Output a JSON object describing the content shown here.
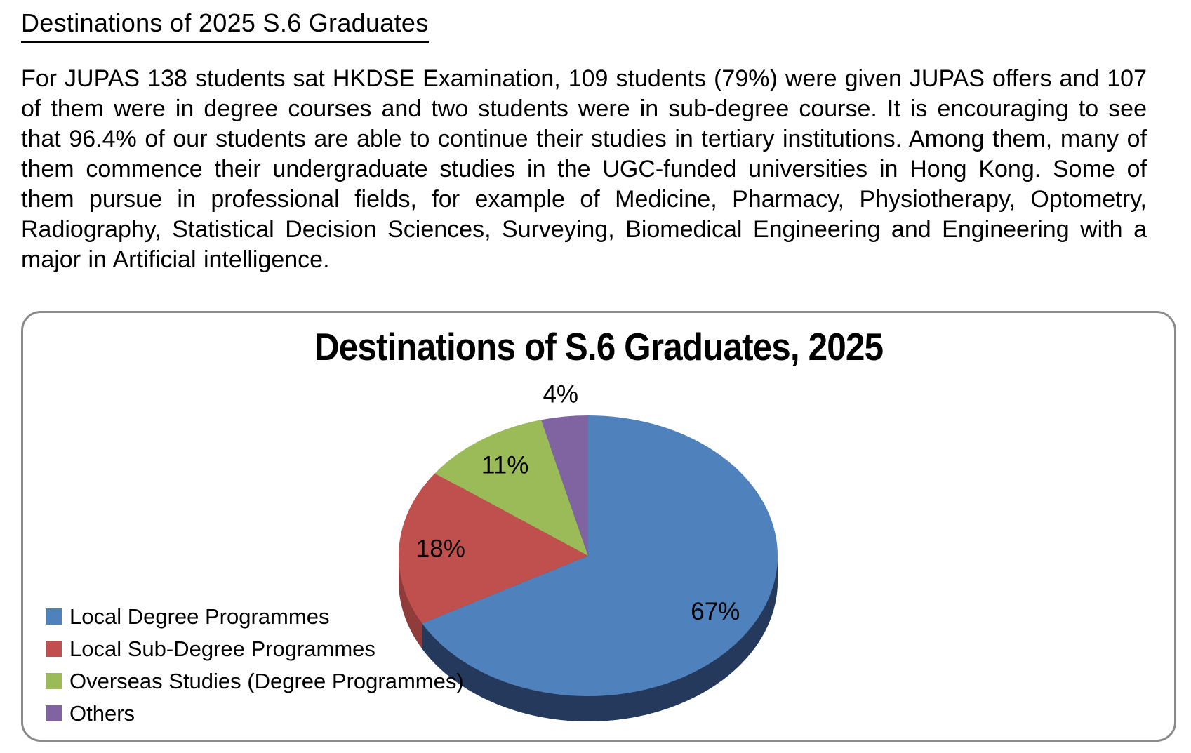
{
  "page": {
    "heading": "Destinations of 2025 S.6 Graduates",
    "paragraph": "For JUPAS 138 students sat HKDSE Examination, 109 students (79%) were given JUPAS offers and 107 of them were in degree courses and two students were in sub-degree course. It is encouraging to see that 96.4% of our students are able to continue their studies in tertiary institutions. Among them, many of them commence their undergraduate studies in the UGC-funded universities in Hong Kong. Some of them pursue in professional fields, for example of Medicine, Pharmacy, Physiotherapy, Optometry, Radiography, Statistical Decision Sciences, Surveying, Biomedical Engineering and Engineering with a major in Artificial intelligence."
  },
  "chart_data": {
    "type": "pie",
    "style": "3d",
    "title": "Destinations of S.6 Graduates, 2025",
    "start_angle_deg": 0,
    "direction": "clockwise",
    "legend_position": "bottom-left",
    "slices": [
      {
        "label": "Local Degree Programmes",
        "value": 67,
        "pct_label": "67%",
        "color": "#4F81BD",
        "side_color": "#24395B"
      },
      {
        "label": "Local Sub-Degree Programmes",
        "value": 18,
        "pct_label": "18%",
        "color": "#C0504D",
        "side_color": "#903C3A"
      },
      {
        "label": "Overseas Studies (Degree Programmes)",
        "value": 11,
        "pct_label": "11%",
        "color": "#9BBB59",
        "side_color": "#738B42"
      },
      {
        "label": "Others",
        "value": 4,
        "pct_label": "4%",
        "color": "#8064A2",
        "side_color": "#5F4A79"
      }
    ]
  }
}
